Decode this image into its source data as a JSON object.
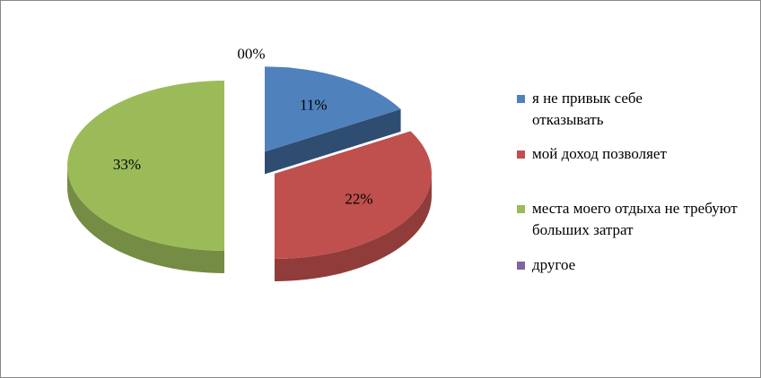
{
  "chart_data": {
    "type": "pie",
    "categories": [
      "я не привык себе отказывать",
      "мой доход позволяет",
      "места моего отдыха не требуют больших затрат",
      "другое"
    ],
    "values": [
      11,
      22,
      33,
      0
    ],
    "value_labels": [
      "11%",
      "22%",
      "33%",
      "00%"
    ],
    "colors": [
      "#4f81bd",
      "#c0504d",
      "#9bbb59",
      "#8064a2"
    ],
    "legend": "right"
  }
}
